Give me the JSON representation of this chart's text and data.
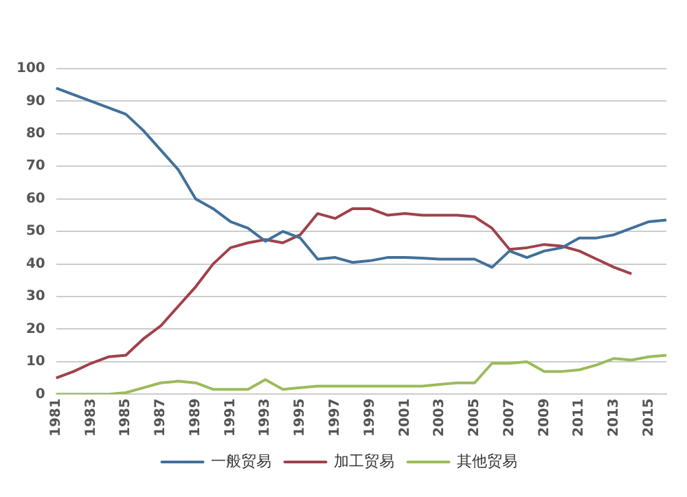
{
  "chart_data": {
    "type": "line",
    "categories": [
      "1981",
      null,
      "1983",
      null,
      "1985",
      null,
      "1987",
      null,
      "1989",
      null,
      "1991",
      null,
      "1993",
      null,
      "1995",
      null,
      "1997",
      null,
      "1999",
      null,
      "2001",
      null,
      "2003",
      null,
      "2005",
      null,
      "2007",
      null,
      "2009",
      null,
      "2011",
      null,
      "2013",
      null,
      "2015",
      null
    ],
    "series": [
      {
        "name": "一般贸易",
        "color": "#41709a",
        "values": [
          94,
          92,
          90,
          88,
          86,
          81,
          75,
          69,
          60,
          57,
          53,
          51,
          47,
          50,
          48,
          41.5,
          42,
          40.5,
          41,
          42,
          42,
          41.8,
          41.5,
          41.5,
          41.5,
          39,
          44,
          42,
          44,
          45,
          48,
          48,
          49,
          51,
          53,
          53.5
        ]
      },
      {
        "name": "加工贸易",
        "color": "#a0414a",
        "values": [
          5,
          7,
          9.5,
          11.5,
          12,
          17,
          21,
          27,
          33,
          40,
          45,
          46.5,
          47.5,
          46.5,
          49,
          55.5,
          54,
          57,
          57,
          55,
          55.5,
          55,
          55,
          55,
          54.5,
          51,
          44.5,
          45,
          46,
          45.5,
          44,
          41.5,
          39,
          37,
          null,
          null
        ]
      },
      {
        "name": "其他贸易",
        "color": "#9bbb59",
        "values": [
          0,
          0,
          0,
          0,
          0.5,
          2,
          3.5,
          4,
          3.5,
          1.5,
          1.5,
          1.5,
          4.5,
          1.5,
          2,
          2.5,
          2.5,
          2.5,
          2.5,
          2.5,
          2.5,
          2.5,
          3,
          3.5,
          3.5,
          9.5,
          9.5,
          10,
          7,
          7,
          7.5,
          9,
          11,
          10.5,
          11.5,
          12
        ]
      }
    ],
    "ylim": [
      0,
      100
    ],
    "yticks": [
      0,
      10,
      20,
      30,
      40,
      50,
      60,
      70,
      80,
      90,
      100
    ],
    "grid": "y",
    "legend": "bottom",
    "marker": "none"
  }
}
